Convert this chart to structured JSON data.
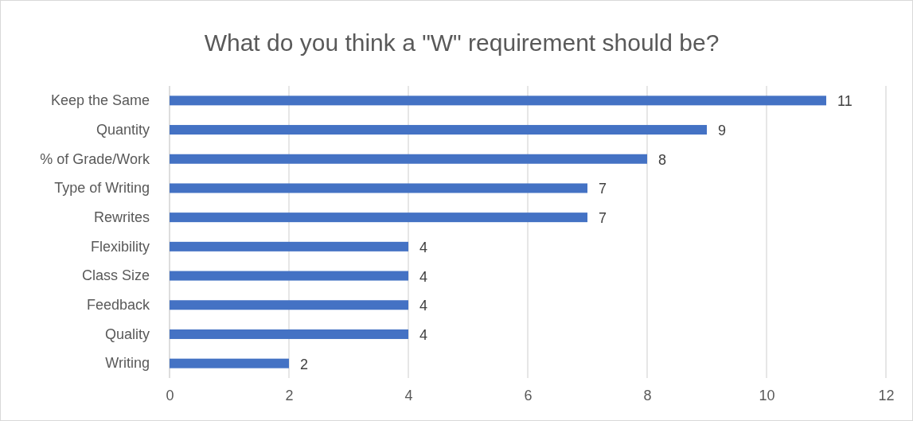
{
  "chart_data": {
    "type": "bar",
    "orientation": "horizontal",
    "title": "What do you think a \"W\" requirement should be?",
    "categories": [
      "Keep the Same",
      "Quantity",
      "% of Grade/Work",
      "Type of Writing",
      "Rewrites",
      "Flexibility",
      "Class Size",
      "Feedback",
      "Quality",
      "Writing"
    ],
    "values": [
      11,
      9,
      8,
      7,
      7,
      4,
      4,
      4,
      4,
      2
    ],
    "color": "#4472c4",
    "xlim": [
      0,
      12
    ],
    "xticks": [
      0,
      2,
      4,
      6,
      8,
      10,
      12
    ],
    "grid": "x",
    "data_labels": true
  }
}
